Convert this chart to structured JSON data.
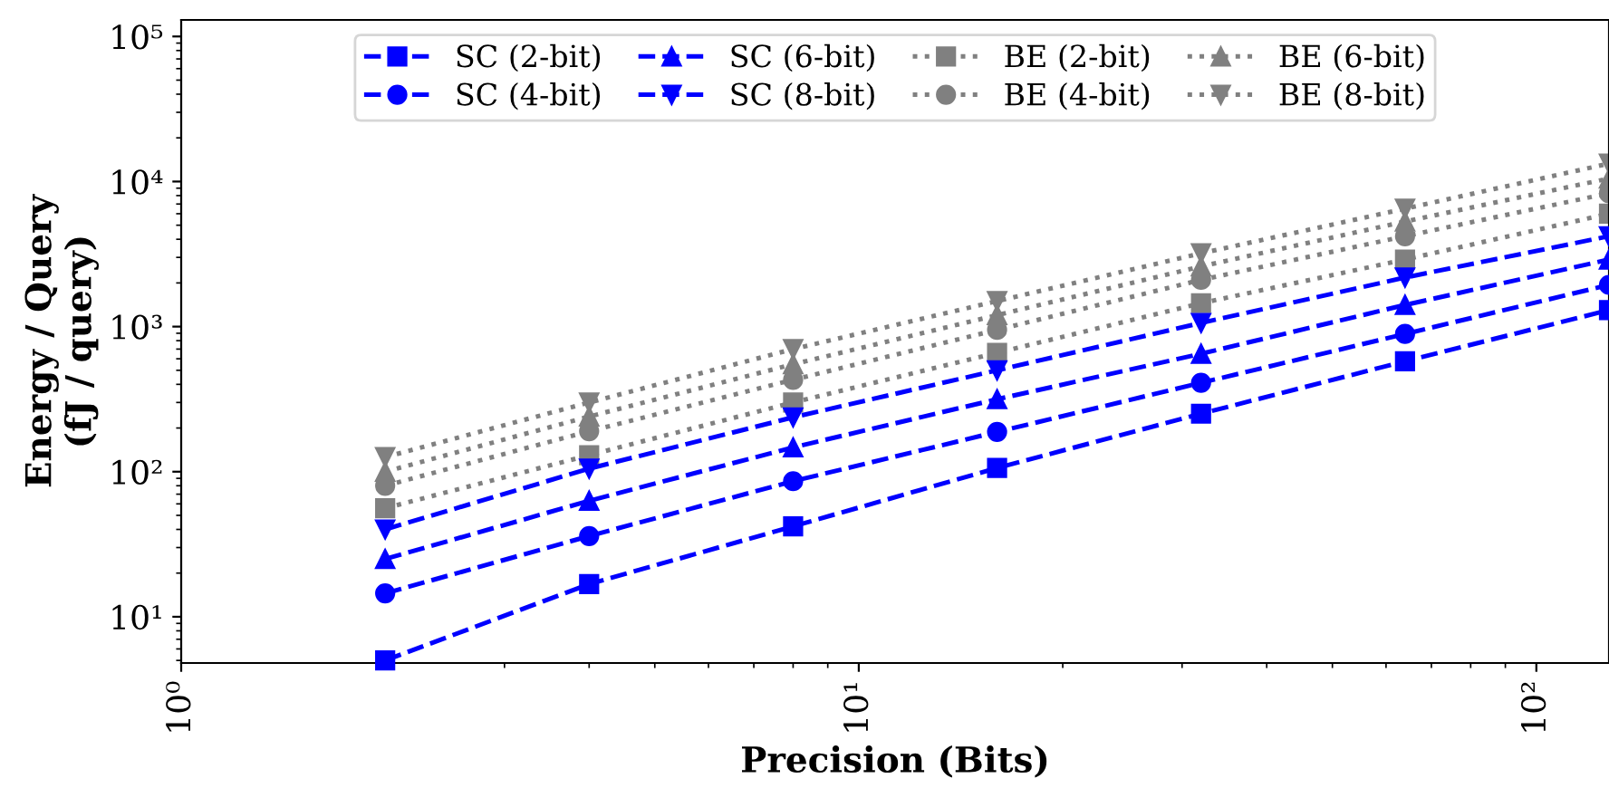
{
  "chart_data": {
    "type": "line",
    "xlabel": "Precision (Bits)",
    "ylabel": "Energy / Query\n(fJ / query)",
    "log": "xy",
    "grid": false,
    "legend": "top",
    "x": [
      2,
      4,
      8,
      16,
      32,
      64,
      128
    ],
    "xlim": [
      1,
      128
    ],
    "xticks": [
      {
        "value": 1,
        "label": "10⁰"
      },
      {
        "value": 10,
        "label": "10¹"
      },
      {
        "value": 100,
        "label": "10²"
      }
    ],
    "ylim": [
      4.8,
      130000
    ],
    "yticks": [
      {
        "value": 10,
        "label": "10¹"
      },
      {
        "value": 100,
        "label": "10²"
      },
      {
        "value": 1000,
        "label": "10³"
      },
      {
        "value": 10000,
        "label": "10⁴"
      },
      {
        "value": 100000,
        "label": "10⁵"
      }
    ],
    "series": [
      {
        "name": "SC (2-bit)",
        "color": "#0000ff",
        "marker": "square",
        "line_style": "dashed",
        "values": [
          5,
          16.8,
          42,
          106,
          251,
          577,
          1300
        ]
      },
      {
        "name": "SC (4-bit)",
        "color": "#0000ff",
        "marker": "circle",
        "line_style": "dashed",
        "values": [
          14.5,
          36,
          86,
          188,
          410,
          890,
          1940
        ]
      },
      {
        "name": "SC (6-bit)",
        "color": "#0000ff",
        "marker": "triangle",
        "line_style": "dashed",
        "values": [
          25,
          63,
          147,
          316,
          650,
          1410,
          2900
        ]
      },
      {
        "name": "SC (8-bit)",
        "color": "#0000ff",
        "marker": "triangle_down",
        "line_style": "dashed",
        "values": [
          40,
          105,
          237,
          500,
          1060,
          2180,
          4200
        ]
      },
      {
        "name": "BE (2-bit)",
        "color": "#808080",
        "marker": "square",
        "line_style": "dotted",
        "values": [
          56,
          130,
          300,
          660,
          1450,
          2900,
          6000
        ]
      },
      {
        "name": "BE (4-bit)",
        "color": "#808080",
        "marker": "circle",
        "line_style": "dotted",
        "values": [
          80,
          190,
          430,
          950,
          2100,
          4200,
          8300
        ]
      },
      {
        "name": "BE (6-bit)",
        "color": "#808080",
        "marker": "triangle",
        "line_style": "dotted",
        "values": [
          100,
          240,
          550,
          1200,
          2600,
          5300,
          10500
        ]
      },
      {
        "name": "BE (8-bit)",
        "color": "#808080",
        "marker": "triangle_down",
        "line_style": "dotted",
        "values": [
          126,
          300,
          700,
          1500,
          3200,
          6500,
          13300
        ]
      }
    ]
  }
}
